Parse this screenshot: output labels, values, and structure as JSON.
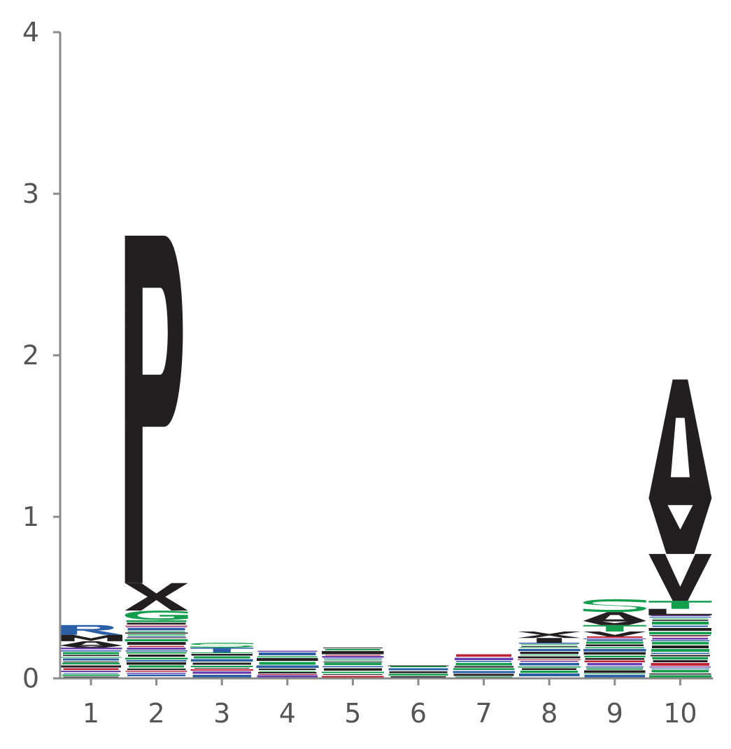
{
  "chart_data": {
    "type": "sequence-logo",
    "title": "",
    "xlabel": "",
    "ylabel": "",
    "ylim": [
      0,
      4
    ],
    "y_ticks": [
      "0",
      "1",
      "2",
      "3",
      "4"
    ],
    "x_ticks": [
      "1",
      "2",
      "3",
      "4",
      "5",
      "6",
      "7",
      "8",
      "9",
      "10"
    ],
    "colors": {
      "hydrophobic": "#231f20",
      "polar": "#129e4c",
      "basic": "#2a5fa6",
      "acidic": "#c02035",
      "amide": "#6a3fb0",
      "axis": "#8a8a8a",
      "tick_text": "#555555"
    },
    "positions": [
      {
        "position": "1",
        "total_bits": 0.33,
        "major_letters": [
          {
            "letter": "A",
            "bits": 0.04,
            "color": "hydrophobic"
          },
          {
            "letter": "R",
            "bits": 0.06,
            "color": "basic"
          },
          {
            "letter": "M",
            "bits": 0.04,
            "color": "hydrophobic"
          }
        ]
      },
      {
        "position": "2",
        "total_bits": 2.74,
        "major_letters": [
          {
            "letter": "P",
            "bits": 2.15,
            "color": "hydrophobic"
          },
          {
            "letter": "X",
            "bits": 0.17,
            "color": "hydrophobic"
          },
          {
            "letter": "G",
            "bits": 0.06,
            "color": "polar"
          }
        ]
      },
      {
        "position": "3",
        "total_bits": 0.22,
        "major_letters": [
          {
            "letter": "T",
            "bits": 0.03,
            "color": "basic"
          },
          {
            "letter": "S",
            "bits": 0.03,
            "color": "polar"
          }
        ]
      },
      {
        "position": "4",
        "total_bits": 0.17,
        "major_letters": []
      },
      {
        "position": "5",
        "total_bits": 0.19,
        "major_letters": []
      },
      {
        "position": "6",
        "total_bits": 0.08,
        "major_letters": []
      },
      {
        "position": "7",
        "total_bits": 0.15,
        "major_letters": []
      },
      {
        "position": "8",
        "total_bits": 0.29,
        "major_letters": [
          {
            "letter": "I",
            "bits": 0.03,
            "color": "hydrophobic"
          },
          {
            "letter": "X",
            "bits": 0.04,
            "color": "hydrophobic"
          }
        ]
      },
      {
        "position": "9",
        "total_bits": 0.49,
        "major_letters": [
          {
            "letter": "A",
            "bits": 0.08,
            "color": "hydrophobic"
          },
          {
            "letter": "S",
            "bits": 0.08,
            "color": "polar"
          },
          {
            "letter": "T",
            "bits": 0.04,
            "color": "polar"
          },
          {
            "letter": "V",
            "bits": 0.03,
            "color": "hydrophobic"
          }
        ]
      },
      {
        "position": "10",
        "total_bits": 1.85,
        "major_letters": [
          {
            "letter": "A",
            "bits": 1.08,
            "color": "hydrophobic"
          },
          {
            "letter": "V",
            "bits": 0.29,
            "color": "hydrophobic"
          },
          {
            "letter": "T",
            "bits": 0.05,
            "color": "polar"
          },
          {
            "letter": "L",
            "bits": 0.04,
            "color": "hydrophobic"
          }
        ]
      }
    ]
  }
}
